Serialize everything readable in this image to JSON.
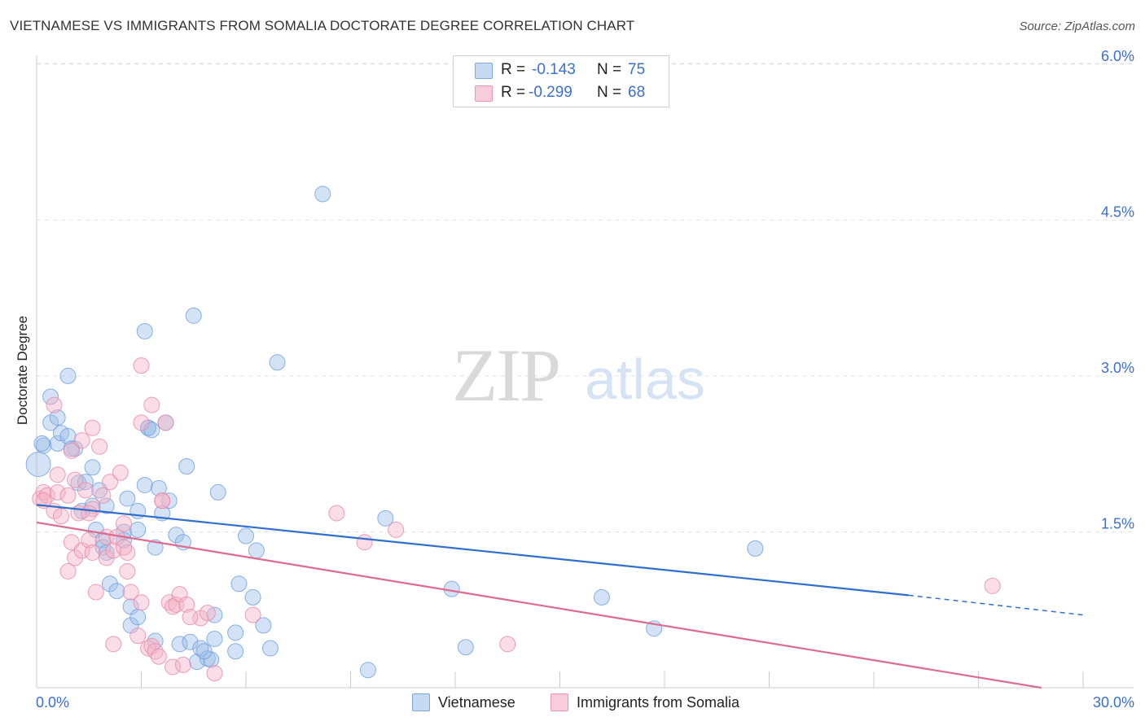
{
  "title": "VIETNAMESE VS IMMIGRANTS FROM SOMALIA DOCTORATE DEGREE CORRELATION CHART",
  "source": "Source: ZipAtlas.com",
  "watermark": {
    "zip": "ZIP",
    "atlas": "atlas"
  },
  "legend_top": {
    "r_label": "R =",
    "n_label": "N =",
    "series": [
      {
        "r_value": "-0.143",
        "n_value": "75"
      },
      {
        "r_value": "-0.299",
        "n_value": "68"
      }
    ]
  },
  "chart_data": {
    "type": "scatter",
    "title": "VIETNAMESE VS IMMIGRANTS FROM SOMALIA DOCTORATE DEGREE CORRELATION CHART",
    "xlabel": "",
    "ylabel": "Doctorate Degree",
    "xlim": [
      0,
      30
    ],
    "ylim": [
      0,
      6.2
    ],
    "x_tick_labels": [
      "0.0%",
      "30.0%"
    ],
    "y_ticks": [
      1.5,
      3.0,
      4.5,
      6.0
    ],
    "y_tick_labels": [
      "1.5%",
      "3.0%",
      "4.5%",
      "6.0%"
    ],
    "grid": true,
    "legend_position": "top-center",
    "series": [
      {
        "name": "Vietnamese",
        "color": "#9dbfe9",
        "line_color": "#2f6fd0",
        "trend": {
          "x0": 0,
          "y0": 1.76,
          "x1": 25.0,
          "y1": 0.89,
          "dash_to_x": 30.0,
          "dash_to_y": 0.7
        },
        "points": [
          [
            0.05,
            2.15
          ],
          [
            0.2,
            2.33
          ],
          [
            0.4,
            2.55
          ],
          [
            0.4,
            2.8
          ],
          [
            0.6,
            2.6
          ],
          [
            0.6,
            2.35
          ],
          [
            0.7,
            2.45
          ],
          [
            0.9,
            2.42
          ],
          [
            0.9,
            3.0
          ],
          [
            1.1,
            2.3
          ],
          [
            1.2,
            1.97
          ],
          [
            1.3,
            1.7
          ],
          [
            1.4,
            1.98
          ],
          [
            1.6,
            1.75
          ],
          [
            1.6,
            2.12
          ],
          [
            1.7,
            1.52
          ],
          [
            1.8,
            1.9
          ],
          [
            1.9,
            1.42
          ],
          [
            1.9,
            1.35
          ],
          [
            2.0,
            1.75
          ],
          [
            2.1,
            1.0
          ],
          [
            2.3,
            0.93
          ],
          [
            2.5,
            1.5
          ],
          [
            2.5,
            1.42
          ],
          [
            2.6,
            1.82
          ],
          [
            2.7,
            0.6
          ],
          [
            2.7,
            0.78
          ],
          [
            2.9,
            1.52
          ],
          [
            2.9,
            0.68
          ],
          [
            2.9,
            1.7
          ],
          [
            3.1,
            3.43
          ],
          [
            3.1,
            1.95
          ],
          [
            3.2,
            2.5
          ],
          [
            3.2,
            2.5
          ],
          [
            3.4,
            0.45
          ],
          [
            3.4,
            1.35
          ],
          [
            3.5,
            1.92
          ],
          [
            3.6,
            1.68
          ],
          [
            3.7,
            2.55
          ],
          [
            3.8,
            1.8
          ],
          [
            4.0,
            1.47
          ],
          [
            4.1,
            0.42
          ],
          [
            4.2,
            1.4
          ],
          [
            4.3,
            2.13
          ],
          [
            4.4,
            0.44
          ],
          [
            4.5,
            3.58
          ],
          [
            4.6,
            0.25
          ],
          [
            4.7,
            0.38
          ],
          [
            4.9,
            0.28
          ],
          [
            5.0,
            0.27
          ],
          [
            5.1,
            0.7
          ],
          [
            5.1,
            0.47
          ],
          [
            5.2,
            1.88
          ],
          [
            5.7,
            0.53
          ],
          [
            5.7,
            0.35
          ],
          [
            5.8,
            1.0
          ],
          [
            6.0,
            1.46
          ],
          [
            6.2,
            0.87
          ],
          [
            6.3,
            1.32
          ],
          [
            6.5,
            0.6
          ],
          [
            6.7,
            0.38
          ],
          [
            6.9,
            3.13
          ],
          [
            8.2,
            4.75
          ],
          [
            9.5,
            0.17
          ],
          [
            10.0,
            1.63
          ],
          [
            11.9,
            0.95
          ],
          [
            12.3,
            0.39
          ],
          [
            16.2,
            0.87
          ],
          [
            17.7,
            0.57
          ],
          [
            20.6,
            1.34
          ],
          [
            0.15,
            2.35
          ],
          [
            1.0,
            2.3
          ],
          [
            2.0,
            1.3
          ],
          [
            3.3,
            2.48
          ],
          [
            4.8,
            0.35
          ]
        ]
      },
      {
        "name": "Immigrants from Somalia",
        "color": "#f4b3c7",
        "line_color": "#e0698f",
        "trend": {
          "x0": 0,
          "y0": 1.59,
          "x1": 28.8,
          "y1": 0.0
        },
        "points": [
          [
            0.1,
            1.82
          ],
          [
            0.2,
            1.88
          ],
          [
            0.3,
            1.85
          ],
          [
            0.5,
            1.7
          ],
          [
            0.5,
            2.72
          ],
          [
            0.6,
            1.88
          ],
          [
            0.6,
            2.05
          ],
          [
            0.7,
            1.65
          ],
          [
            0.9,
            1.85
          ],
          [
            0.9,
            1.12
          ],
          [
            1.0,
            2.28
          ],
          [
            1.0,
            1.4
          ],
          [
            1.1,
            1.25
          ],
          [
            1.1,
            2.0
          ],
          [
            1.2,
            1.68
          ],
          [
            1.3,
            2.38
          ],
          [
            1.3,
            1.32
          ],
          [
            1.4,
            1.9
          ],
          [
            1.5,
            1.42
          ],
          [
            1.6,
            1.72
          ],
          [
            1.6,
            1.3
          ],
          [
            1.6,
            2.5
          ],
          [
            1.7,
            0.92
          ],
          [
            1.8,
            2.32
          ],
          [
            1.9,
            1.85
          ],
          [
            2.0,
            1.25
          ],
          [
            2.0,
            1.45
          ],
          [
            2.1,
            1.98
          ],
          [
            2.2,
            1.32
          ],
          [
            2.2,
            0.42
          ],
          [
            2.3,
            1.45
          ],
          [
            2.4,
            2.07
          ],
          [
            2.5,
            1.58
          ],
          [
            2.6,
            1.12
          ],
          [
            2.6,
            1.3
          ],
          [
            2.7,
            0.92
          ],
          [
            2.9,
            0.5
          ],
          [
            3.0,
            0.82
          ],
          [
            3.0,
            3.1
          ],
          [
            3.0,
            2.55
          ],
          [
            3.2,
            0.38
          ],
          [
            3.3,
            0.4
          ],
          [
            3.3,
            2.72
          ],
          [
            3.4,
            0.35
          ],
          [
            3.5,
            0.3
          ],
          [
            3.6,
            1.8
          ],
          [
            3.7,
            2.55
          ],
          [
            3.8,
            0.82
          ],
          [
            3.9,
            0.2
          ],
          [
            3.9,
            0.78
          ],
          [
            4.0,
            0.8
          ],
          [
            4.1,
            0.9
          ],
          [
            4.2,
            0.22
          ],
          [
            4.3,
            0.8
          ],
          [
            4.7,
            0.67
          ],
          [
            4.9,
            0.72
          ],
          [
            5.1,
            0.14
          ],
          [
            6.2,
            0.7
          ],
          [
            8.6,
            1.68
          ],
          [
            9.4,
            1.4
          ],
          [
            10.3,
            1.52
          ],
          [
            13.5,
            0.42
          ],
          [
            27.4,
            0.98
          ],
          [
            0.2,
            1.8
          ],
          [
            1.5,
            1.68
          ],
          [
            2.5,
            1.35
          ],
          [
            3.6,
            1.8
          ],
          [
            4.4,
            0.68
          ]
        ]
      }
    ]
  },
  "legend_bottom": [
    "Vietnamese",
    "Immigrants from Somalia"
  ]
}
